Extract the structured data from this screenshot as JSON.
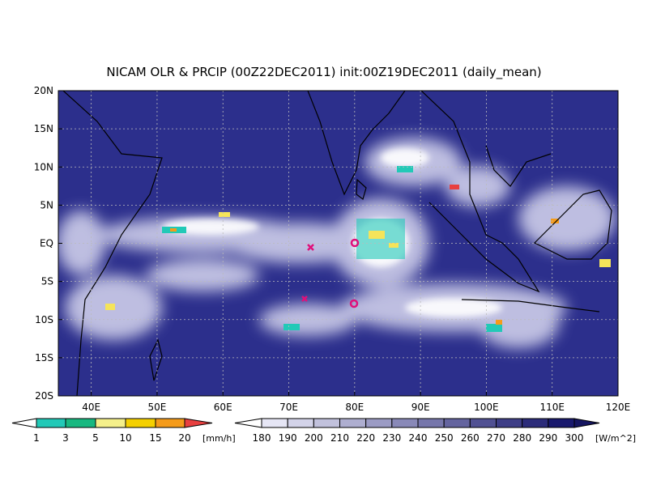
{
  "header": {
    "title": "NICAM OLR & PRCIP (00Z22DEC2011) init:00Z19DEC2011 (daily_mean)"
  },
  "map": {
    "lat_labels": [
      "20N",
      "15N",
      "10N",
      "5N",
      "EQ",
      "5S",
      "10S",
      "15S",
      "20S"
    ],
    "lon_labels": [
      "40E",
      "50E",
      "60E",
      "70E",
      "80E",
      "90E",
      "100E",
      "110E",
      "120E"
    ]
  },
  "precip_colorbar": {
    "labels": [
      "1",
      "3",
      "5",
      "10",
      "15",
      "20"
    ],
    "unit": "[mm/h]"
  },
  "olr_colorbar": {
    "labels": [
      "180",
      "190",
      "200",
      "210",
      "220",
      "230",
      "240",
      "250",
      "260",
      "270",
      "280",
      "290",
      "300"
    ],
    "unit": "[W/m^2]"
  }
}
